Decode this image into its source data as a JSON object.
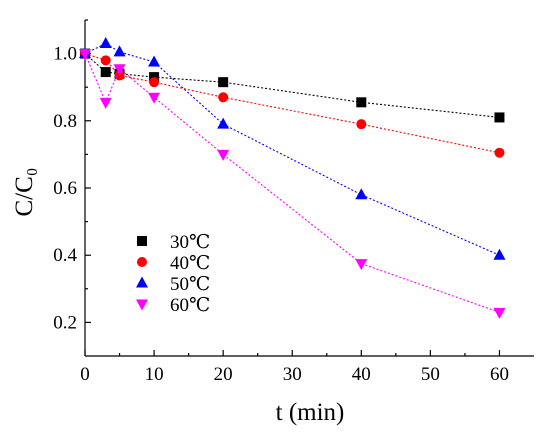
{
  "chart_data": {
    "type": "scatter",
    "xlabel": "t (min)",
    "ylabel": "C/C₀",
    "xlim": [
      0,
      65
    ],
    "ylim": [
      0.1,
      1.1
    ],
    "x_ticks": [
      "0",
      "10",
      "20",
      "30",
      "40",
      "50",
      "60"
    ],
    "y_ticks": [
      "0.2",
      "0.4",
      "0.6",
      "0.8",
      "1.0"
    ],
    "legend_position": "lower-left",
    "series": [
      {
        "name": "30℃",
        "color": "#000000",
        "marker": "square",
        "x": [
          0,
          3,
          5,
          10,
          20,
          40,
          60
        ],
        "y": [
          1.0,
          0.945,
          0.94,
          0.93,
          0.915,
          0.855,
          0.81
        ]
      },
      {
        "name": "40℃",
        "color": "#ff0000",
        "marker": "circle",
        "x": [
          0,
          3,
          5,
          10,
          20,
          40,
          60
        ],
        "y": [
          1.0,
          0.98,
          0.935,
          0.915,
          0.87,
          0.79,
          0.705
        ]
      },
      {
        "name": "50℃",
        "color": "#0000ff",
        "marker": "triangle-up",
        "x": [
          0,
          3,
          5,
          10,
          20,
          40,
          60
        ],
        "y": [
          1.0,
          1.03,
          1.005,
          0.975,
          0.79,
          0.58,
          0.4
        ]
      },
      {
        "name": "60℃",
        "color": "#ff00ff",
        "marker": "triangle-down",
        "x": [
          0,
          3,
          5,
          10,
          20,
          40,
          60
        ],
        "y": [
          1.0,
          0.855,
          0.955,
          0.87,
          0.7,
          0.375,
          0.23
        ]
      }
    ]
  }
}
